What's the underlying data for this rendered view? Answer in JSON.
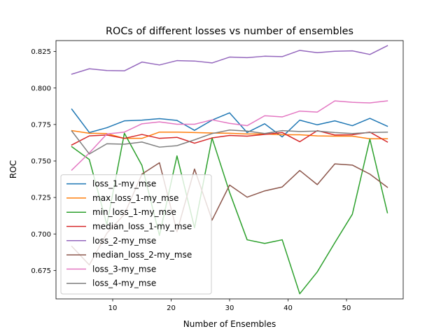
{
  "chart_data": {
    "type": "line",
    "title": "ROCs of different losses vs number of ensembles",
    "xlabel": "Number of Ensembles",
    "ylabel": "ROC",
    "xlim": [
      0.3,
      59.7
    ],
    "ylim": [
      0.6555,
      0.8325
    ],
    "xticks": [
      10,
      20,
      30,
      40,
      50
    ],
    "yticks": [
      0.675,
      0.7,
      0.725,
      0.75,
      0.775,
      0.8,
      0.825
    ],
    "ytick_labels": [
      "0.675",
      "0.700",
      "0.725",
      "0.750",
      "0.775",
      "0.800",
      "0.825"
    ],
    "grid": false,
    "legend_position": "lower-left",
    "x": [
      3,
      6,
      9,
      12,
      15,
      18,
      21,
      24,
      27,
      30,
      33,
      36,
      39,
      42,
      45,
      48,
      51,
      54,
      57
    ],
    "series": [
      {
        "name": "loss_1-my_mse",
        "color": "#1f77b4",
        "values": [
          0.7855,
          0.7695,
          0.7728,
          0.7775,
          0.778,
          0.779,
          0.7778,
          0.771,
          0.778,
          0.783,
          0.7695,
          0.7755,
          0.7665,
          0.778,
          0.7748,
          0.7775,
          0.7742,
          0.7792,
          0.7738
        ]
      },
      {
        "name": "max_loss_1-my_mse",
        "color": "#ff7f0e",
        "values": [
          0.7708,
          0.769,
          0.7688,
          0.7655,
          0.7655,
          0.7698,
          0.7698,
          0.7695,
          0.7692,
          0.769,
          0.7685,
          0.7685,
          0.768,
          0.768,
          0.7672,
          0.767,
          0.767,
          0.7652,
          0.7652
        ]
      },
      {
        "name": "min_loss_1-my_mse",
        "color": "#2ca02c",
        "values": [
          0.7598,
          0.751,
          0.7065,
          0.769,
          0.747,
          0.699,
          0.7535,
          0.7042,
          0.7658,
          0.7285,
          0.696,
          0.6935,
          0.696,
          0.659,
          0.674,
          0.694,
          0.7135,
          0.765,
          0.7145
        ]
      },
      {
        "name": "median_loss_1-my_mse",
        "color": "#d62728",
        "values": [
          0.761,
          0.7672,
          0.7678,
          0.7655,
          0.7682,
          0.7655,
          0.7662,
          0.7622,
          0.7658,
          0.7675,
          0.767,
          0.7682,
          0.7695,
          0.7632,
          0.7708,
          0.7678,
          0.768,
          0.7698,
          0.763
        ]
      },
      {
        "name": "loss_2-my_mse",
        "color": "#9467bd",
        "values": [
          0.8095,
          0.8132,
          0.812,
          0.8118,
          0.8178,
          0.8158,
          0.8188,
          0.8185,
          0.8172,
          0.8212,
          0.8208,
          0.8218,
          0.8215,
          0.8258,
          0.8242,
          0.8252,
          0.8255,
          0.823,
          0.829
        ]
      },
      {
        "name": "median_loss_2-my_mse",
        "color": "#8c564b",
        "values": [
          0.6915,
          0.6788,
          0.7005,
          0.7135,
          0.741,
          0.7488,
          0.7015,
          0.7445,
          0.7095,
          0.7335,
          0.7252,
          0.7295,
          0.7322,
          0.7435,
          0.7338,
          0.748,
          0.7472,
          0.741,
          0.732
        ]
      },
      {
        "name": "loss_3-my_mse",
        "color": "#e377c2",
        "values": [
          0.7438,
          0.7555,
          0.7685,
          0.7698,
          0.7755,
          0.7768,
          0.7752,
          0.7752,
          0.7782,
          0.7758,
          0.7742,
          0.781,
          0.7802,
          0.7842,
          0.7835,
          0.7912,
          0.7902,
          0.7898,
          0.7912
        ]
      },
      {
        "name": "loss_4-my_mse",
        "color": "#7f7f7f",
        "values": [
          0.7705,
          0.7548,
          0.7618,
          0.7615,
          0.763,
          0.7595,
          0.7605,
          0.7645,
          0.7688,
          0.7712,
          0.7705,
          0.7688,
          0.7708,
          0.7702,
          0.7705,
          0.7695,
          0.7688,
          0.7695,
          0.7698
        ]
      }
    ]
  }
}
